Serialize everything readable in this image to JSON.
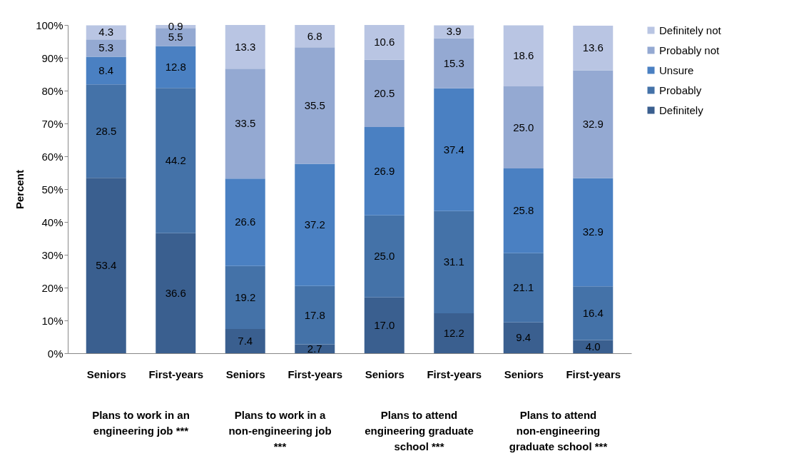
{
  "chart_data": {
    "type": "bar",
    "stacked": true,
    "ylabel": "Percent",
    "categories": [
      "Seniors",
      "First-years",
      "Seniors",
      "First-years",
      "Seniors",
      "First-years",
      "Seniors",
      "First-years"
    ],
    "series": [
      {
        "name": "Definitely",
        "color": "#3a5f8f",
        "values": [
          53.4,
          36.6,
          7.4,
          2.7,
          17,
          12.2,
          9.4,
          4
        ],
        "value_labels": [
          "53.4",
          "36.6",
          "7.4",
          "2.7",
          "17.0",
          "12.2",
          "9.4",
          "4.0"
        ]
      },
      {
        "name": "Probably",
        "color": "#4472a8",
        "values": [
          28.5,
          44.2,
          19.2,
          17.8,
          25,
          31.1,
          21.1,
          16.4
        ],
        "value_labels": [
          "28.5",
          "44.2",
          "19.2",
          "17.8",
          "25.0",
          "31.1",
          "21.1",
          "16.4"
        ]
      },
      {
        "name": "Unsure",
        "color": "#4a80c2",
        "values": [
          8.4,
          12.8,
          26.6,
          37.2,
          26.9,
          37.4,
          25.8,
          32.9
        ],
        "value_labels": [
          "8.4",
          "12.8",
          "26.6",
          "37.2",
          "26.9",
          "37.4",
          "25.8",
          "32.9"
        ]
      },
      {
        "name": "Probably not",
        "color": "#94a9d2",
        "values": [
          5.3,
          5.5,
          33.5,
          35.5,
          20.5,
          15.3,
          25,
          32.9
        ],
        "value_labels": [
          "5.3",
          "5.5",
          "33.5",
          "35.5",
          "20.5",
          "15.3",
          "25.0",
          "32.9"
        ]
      },
      {
        "name": "Definitely not",
        "color": "#b9c5e3",
        "values": [
          4.3,
          0.9,
          13.3,
          6.8,
          10.6,
          3.9,
          18.6,
          13.6
        ],
        "value_labels": [
          "4.3",
          "0.9",
          "13.3",
          "6.8",
          "10.6",
          "3.9",
          "18.6",
          "13.6"
        ]
      }
    ],
    "ylim": [
      0,
      100
    ],
    "yticks": [
      {
        "value": 0,
        "label": "0%"
      },
      {
        "value": 10,
        "label": "10%"
      },
      {
        "value": 20,
        "label": "20%"
      },
      {
        "value": 30,
        "label": "30%"
      },
      {
        "value": 40,
        "label": "40%"
      },
      {
        "value": 50,
        "label": "50%"
      },
      {
        "value": 60,
        "label": "60%"
      },
      {
        "value": 70,
        "label": "70%"
      },
      {
        "value": 80,
        "label": "80%"
      },
      {
        "value": 90,
        "label": "90%"
      },
      {
        "value": 100,
        "label": "100%"
      }
    ],
    "annotations": [
      "Plans to work in an engineering job ***",
      "Plans to work in a non-engineering job ***",
      "Plans to attend engineering graduate school ***",
      "Plans to attend non-engineering graduate school ***"
    ],
    "legend": "right",
    "grid": false
  }
}
